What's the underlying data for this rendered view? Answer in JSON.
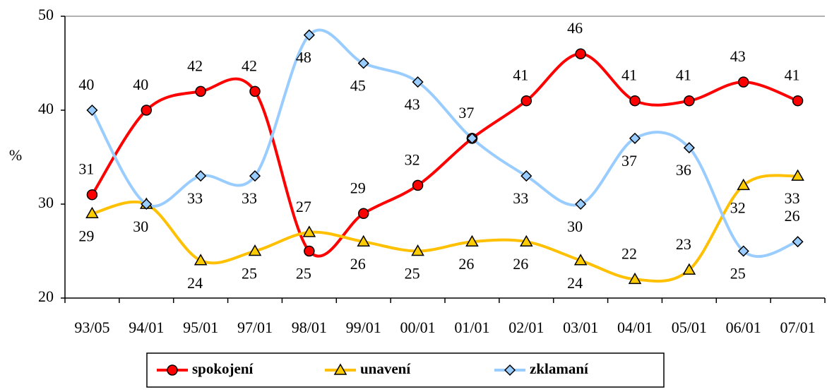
{
  "chart_data": {
    "type": "line",
    "y_label": "%",
    "categories": [
      "93/05",
      "94/01",
      "95/01",
      "97/01",
      "98/01",
      "99/01",
      "00/01",
      "01/01",
      "02/01",
      "03/01",
      "04/01",
      "05/01",
      "06/01",
      "07/01"
    ],
    "series": [
      {
        "name": "spokojení",
        "color": "#ff0000",
        "marker": "circle",
        "values": [
          31,
          40,
          42,
          42,
          25,
          29,
          32,
          37,
          41,
          46,
          41,
          41,
          43,
          41
        ]
      },
      {
        "name": "unavení",
        "color": "#ffc000",
        "marker": "triangle",
        "values": [
          29,
          30,
          24,
          25,
          27,
          26,
          25,
          26,
          26,
          24,
          22,
          23,
          32,
          33
        ]
      },
      {
        "name": "zklamaní",
        "color": "#99ccff",
        "marker": "diamond",
        "values": [
          40,
          30,
          33,
          33,
          48,
          45,
          43,
          37,
          33,
          30,
          37,
          36,
          25,
          26
        ]
      }
    ],
    "ylim": [
      20,
      50
    ],
    "yticks": [
      20,
      30,
      40,
      50
    ],
    "legend": "bottom"
  }
}
